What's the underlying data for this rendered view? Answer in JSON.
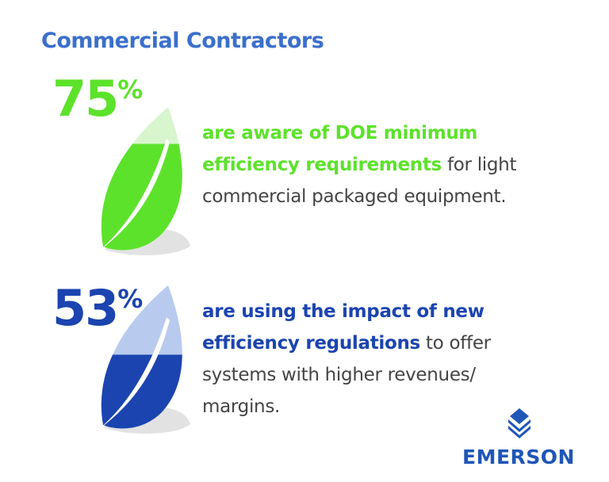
{
  "title": "Commercial Contractors",
  "stats": [
    {
      "value": 75,
      "unit": "%",
      "highlight": "are aware of DOE minimum efficiency requirements",
      "text": " for light commercial packaged equipment.",
      "color": "#5de22b",
      "light": "#d8f6cd"
    },
    {
      "value": 53,
      "unit": "%",
      "highlight": "are using the impact of new efficiency regulations",
      "text": " to offer systems with higher revenues/ margins.",
      "color": "#1b44b0",
      "light": "#b8cbee"
    }
  ],
  "logo": "EMERSON"
}
